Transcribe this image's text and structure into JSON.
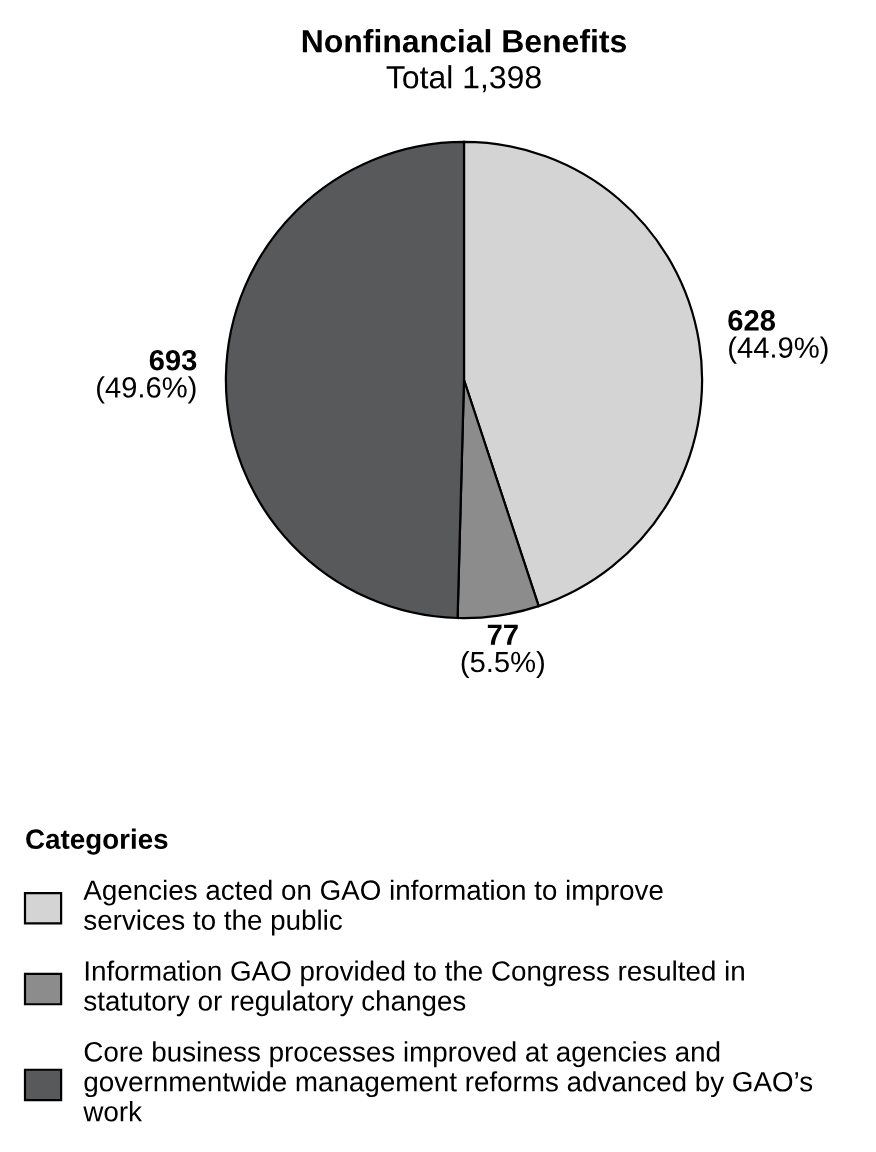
{
  "chart_data": {
    "type": "pie",
    "title": "Nonfinancial Benefits",
    "subtitle": "Total 1,398",
    "categories": [
      "Agencies acted on GAO information to improve services to the public",
      "Information GAO provided to the Congress resulted in statutory or regulatory changes",
      "Core business processes improved at agencies and governmentwide management reforms advanced by GAO’s work"
    ],
    "values": [
      628,
      77,
      693
    ],
    "colors": [
      "#d4d4d4",
      "#8c8c8c",
      "#58595b"
    ],
    "value_labels": [
      "628\n(44.9%)",
      "77\n(5.5%)",
      "693\n(49.6%)"
    ],
    "legend_title": "Categories",
    "legend": "bottom"
  }
}
